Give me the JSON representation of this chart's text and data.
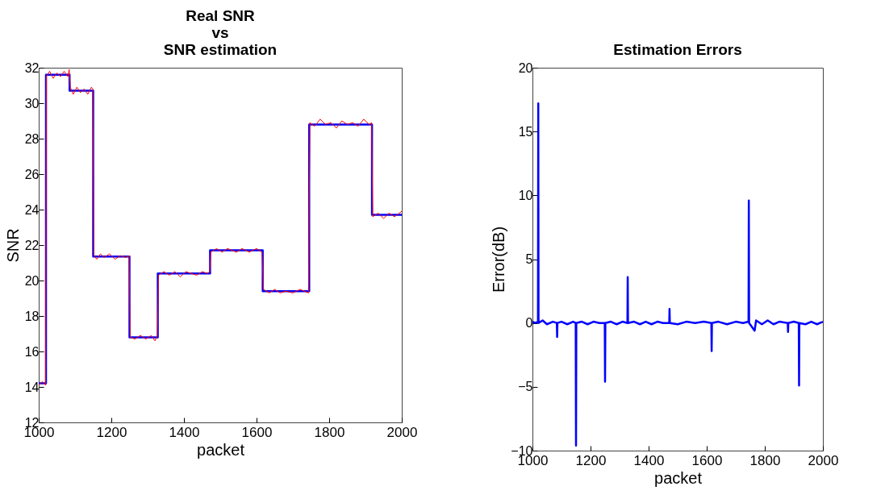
{
  "chart_data": [
    {
      "type": "line",
      "title": "Real SNR\nvs\nSNR estimation",
      "xlabel": "packet",
      "ylabel": "SNR",
      "xlim": [
        1000,
        2000
      ],
      "xticks": [
        1000,
        1200,
        1400,
        1600,
        1800,
        2000
      ],
      "ylim": [
        12,
        32
      ],
      "yticks": [
        12,
        14,
        16,
        18,
        20,
        22,
        24,
        26,
        28,
        30,
        32
      ],
      "grid": false,
      "legend": false,
      "series": [
        {
          "type": "step",
          "color": "#0000ff",
          "x": [
            1000,
            1020,
            1085,
            1150,
            1250,
            1328,
            1472,
            1617,
            1745,
            1918,
            2000
          ],
          "values": [
            14.2,
            31.6,
            30.7,
            21.35,
            16.8,
            20.4,
            21.7,
            19.4,
            28.8,
            23.7,
            23.7
          ]
        },
        {
          "type": "line",
          "color": "#ff0000",
          "x": [
            1000,
            1010,
            1019,
            1021,
            1030,
            1040,
            1050,
            1060,
            1070,
            1080,
            1084,
            1087,
            1095,
            1105,
            1115,
            1125,
            1135,
            1145,
            1149,
            1152,
            1160,
            1170,
            1180,
            1195,
            1210,
            1225,
            1240,
            1249,
            1252,
            1265,
            1280,
            1295,
            1310,
            1320,
            1327,
            1330,
            1345,
            1360,
            1375,
            1390,
            1405,
            1420,
            1435,
            1450,
            1465,
            1471,
            1474,
            1490,
            1505,
            1520,
            1545,
            1560,
            1580,
            1600,
            1615,
            1619,
            1635,
            1650,
            1665,
            1680,
            1700,
            1720,
            1743,
            1747,
            1760,
            1775,
            1790,
            1805,
            1820,
            1835,
            1850,
            1865,
            1880,
            1895,
            1910,
            1917,
            1920,
            1935,
            1950,
            1965,
            1980,
            2000
          ],
          "values": [
            14.1,
            14.3,
            14.1,
            31.5,
            31.8,
            31.4,
            31.7,
            31.5,
            31.8,
            31.5,
            31.9,
            30.9,
            30.5,
            30.9,
            30.6,
            30.8,
            30.5,
            30.9,
            30.8,
            21.4,
            21.2,
            21.5,
            21.3,
            21.5,
            21.2,
            21.4,
            21.3,
            21.4,
            16.8,
            16.7,
            16.9,
            16.7,
            16.9,
            16.6,
            16.9,
            20.3,
            20.5,
            20.3,
            20.5,
            20.2,
            20.5,
            20.4,
            20.3,
            20.5,
            20.4,
            20.5,
            21.6,
            21.8,
            21.6,
            21.8,
            21.6,
            21.8,
            21.6,
            21.8,
            21.6,
            19.5,
            19.3,
            19.5,
            19.3,
            19.4,
            19.3,
            19.5,
            19.3,
            28.9,
            28.7,
            29.1,
            28.8,
            28.9,
            28.6,
            29.0,
            28.8,
            28.9,
            28.7,
            29.1,
            28.8,
            28.9,
            23.6,
            23.8,
            23.5,
            23.8,
            23.6,
            23.9
          ]
        }
      ]
    },
    {
      "type": "line",
      "title": "Estimation Errors",
      "xlabel": "packet",
      "ylabel": "Error(dB)",
      "xlim": [
        1000,
        2000
      ],
      "xticks": [
        1000,
        1200,
        1400,
        1600,
        1800,
        2000
      ],
      "ylim": [
        -10,
        20
      ],
      "yticks": [
        -10,
        -5,
        0,
        5,
        10,
        15,
        20
      ],
      "grid": false,
      "legend": false,
      "series": [
        {
          "color": "#0000ff",
          "x": [
            1000,
            1010,
            1019,
            1020,
            1021,
            1035,
            1050,
            1070,
            1084,
            1085,
            1086,
            1100,
            1120,
            1140,
            1149,
            1150,
            1151,
            1170,
            1190,
            1210,
            1230,
            1249,
            1250,
            1251,
            1270,
            1290,
            1310,
            1327,
            1328,
            1329,
            1350,
            1370,
            1390,
            1410,
            1430,
            1450,
            1471,
            1472,
            1473,
            1500,
            1530,
            1560,
            1590,
            1616,
            1617,
            1618,
            1640,
            1670,
            1700,
            1725,
            1744,
            1745,
            1746,
            1765,
            1770,
            1790,
            1810,
            1830,
            1850,
            1879,
            1880,
            1881,
            1900,
            1917,
            1918,
            1919,
            1940,
            1960,
            1980,
            2000
          ],
          "values": [
            0.1,
            0,
            0.1,
            17.2,
            0,
            0.2,
            -0.1,
            0.1,
            0,
            -1.1,
            0,
            0.1,
            -0.1,
            0.1,
            0,
            -9.6,
            0,
            0.1,
            -0.1,
            0.1,
            0,
            0,
            -4.6,
            0,
            0.1,
            -0.1,
            0.1,
            0,
            3.6,
            0,
            0.1,
            -0.1,
            0.1,
            -0.1,
            0.1,
            0,
            0,
            1.1,
            0,
            -0.1,
            0.1,
            0,
            0.1,
            0,
            -2.2,
            0,
            0.1,
            -0.1,
            0.1,
            0,
            0.1,
            9.6,
            0,
            -0.6,
            0.2,
            -0.1,
            0.2,
            -0.1,
            0.1,
            0,
            -0.7,
            0,
            0.1,
            0,
            -4.9,
            0,
            -0.1,
            0.1,
            -0.1,
            0.1
          ]
        }
      ]
    }
  ]
}
